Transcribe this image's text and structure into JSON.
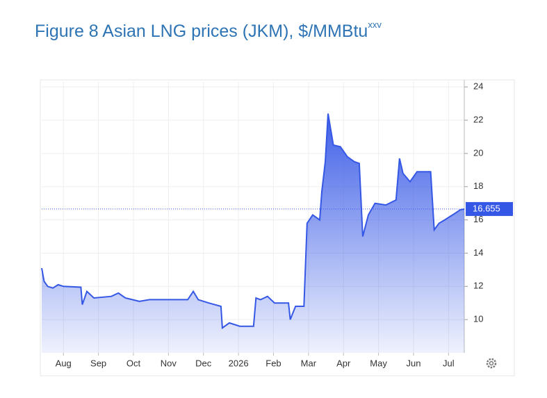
{
  "chart_data": {
    "type": "area",
    "title": "Figure 8 Asian LNG prices (JKM), $/MMBtu",
    "title_superscript": "xxv",
    "color": "#3557e6",
    "grid": true,
    "xlim": [
      7.38,
      19.45
    ],
    "xticks": [
      {
        "value": 8,
        "label": "Aug"
      },
      {
        "value": 9,
        "label": "Sep"
      },
      {
        "value": 10,
        "label": "Oct"
      },
      {
        "value": 11,
        "label": "Nov"
      },
      {
        "value": 12,
        "label": "Dec"
      },
      {
        "value": 13,
        "label": "2026"
      },
      {
        "value": 14,
        "label": "Feb"
      },
      {
        "value": 15,
        "label": "Mar"
      },
      {
        "value": 16,
        "label": "Apr"
      },
      {
        "value": 17,
        "label": "May"
      },
      {
        "value": 18,
        "label": "Jun"
      },
      {
        "value": 19,
        "label": "Jul"
      }
    ],
    "ylim": [
      8,
      24.3
    ],
    "yticks": [
      10,
      12,
      14,
      16,
      18,
      20,
      22,
      24
    ],
    "x": [
      7.38,
      7.45,
      7.55,
      7.7,
      7.85,
      8.0,
      8.5,
      8.54,
      8.67,
      8.87,
      9.37,
      9.57,
      9.77,
      9.97,
      10.17,
      10.46,
      10.76,
      11.16,
      11.55,
      11.71,
      11.85,
      12.15,
      12.5,
      12.54,
      12.74,
      13.04,
      13.43,
      13.5,
      13.63,
      13.83,
      14.03,
      14.43,
      14.48,
      14.63,
      14.87,
      14.96,
      15.12,
      15.32,
      15.38,
      15.48,
      15.56,
      15.71,
      15.91,
      16.11,
      16.31,
      16.45,
      16.55,
      16.71,
      16.9,
      17.21,
      17.5,
      17.6,
      17.7,
      17.9,
      18.1,
      18.49,
      18.59,
      18.73,
      18.89,
      19.19,
      19.33,
      19.45
    ],
    "values": [
      13.1,
      12.3,
      12.0,
      11.9,
      12.1,
      12.0,
      11.95,
      10.9,
      11.7,
      11.3,
      11.4,
      11.6,
      11.3,
      11.2,
      11.1,
      11.2,
      11.2,
      11.2,
      11.2,
      11.7,
      11.2,
      11.0,
      10.8,
      9.5,
      9.8,
      9.6,
      9.6,
      11.3,
      11.2,
      11.4,
      11.0,
      11.0,
      10.0,
      10.8,
      10.8,
      15.8,
      16.3,
      16.0,
      17.7,
      19.5,
      22.4,
      20.5,
      20.4,
      19.8,
      19.5,
      19.4,
      15.0,
      16.3,
      17.0,
      16.9,
      17.2,
      19.7,
      18.8,
      18.3,
      18.9,
      18.9,
      15.4,
      15.8,
      16.0,
      16.4,
      16.6,
      16.655
    ]
  }
}
